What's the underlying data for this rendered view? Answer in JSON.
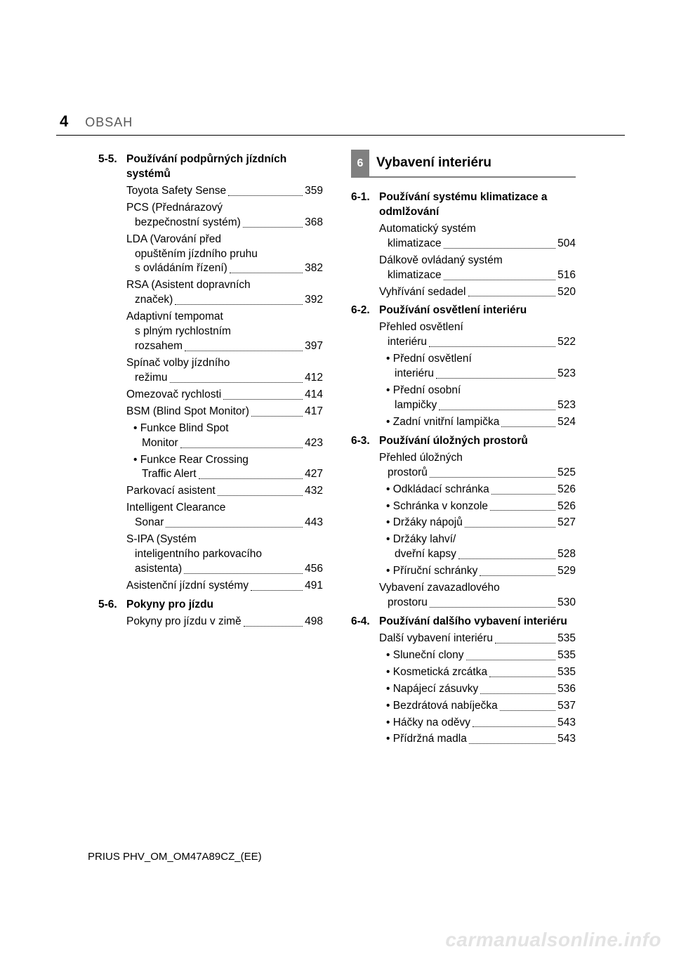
{
  "page_number": "4",
  "chapter_label": "OBSAH",
  "footer": "PRIUS PHV_OM_OM47A89CZ_(EE)",
  "watermark": "carmanualsonline.info",
  "left_column": {
    "sections": [
      {
        "num": "5-5.",
        "title": "Používání podpůrných jízdních systémů",
        "entries": [
          {
            "label": "Toyota Safety Sense",
            "page": "359"
          },
          {
            "label_lines": [
              "PCS (Přednárazový",
              "bezpečnostní systém)"
            ],
            "page": "368"
          },
          {
            "label_lines": [
              "LDA (Varování před",
              "opuštěním jízdního pruhu",
              "s ovládáním řízení)"
            ],
            "page": "382"
          },
          {
            "label_lines": [
              "RSA (Asistent dopravních",
              "značek)"
            ],
            "page": "392"
          },
          {
            "label_lines": [
              "Adaptivní tempomat",
              "s plným rychlostním",
              "rozsahem"
            ],
            "page": "397"
          },
          {
            "label_lines": [
              "Spínač volby jízdního",
              "režimu"
            ],
            "page": "412"
          },
          {
            "label": "Omezovač rychlosti",
            "page": "414"
          },
          {
            "label": "BSM (Blind Spot Monitor)",
            "page": "417"
          },
          {
            "sub": true,
            "label_lines": [
              "• Funkce Blind Spot",
              "Monitor"
            ],
            "page": "423"
          },
          {
            "sub": true,
            "label_lines": [
              "• Funkce Rear Crossing",
              "Traffic Alert"
            ],
            "page": "427"
          },
          {
            "label": "Parkovací asistent",
            "page": "432"
          },
          {
            "label_lines": [
              "Intelligent Clearance",
              "Sonar"
            ],
            "page": "443"
          },
          {
            "label_lines": [
              "S-IPA (Systém",
              "inteligentního parkovacího",
              "asistenta)"
            ],
            "page": "456"
          },
          {
            "label": "Asistenční jízdní systémy",
            "page": "491"
          }
        ]
      },
      {
        "num": "5-6.",
        "title": "Pokyny pro jízdu",
        "entries": [
          {
            "label": "Pokyny pro jízdu v zimě",
            "page": "498"
          }
        ]
      }
    ]
  },
  "right_column": {
    "banner": {
      "num": "6",
      "title": "Vybavení interiéru"
    },
    "sections": [
      {
        "num": "6-1.",
        "title": "Používání systému klimatizace a odmlžování",
        "entries": [
          {
            "label_lines": [
              "Automatický systém",
              "klimatizace"
            ],
            "page": "504"
          },
          {
            "label_lines": [
              "Dálkově ovládaný systém",
              "klimatizace"
            ],
            "page": "516"
          },
          {
            "label": "Vyhřívání sedadel",
            "page": "520"
          }
        ]
      },
      {
        "num": "6-2.",
        "title": "Používání osvětlení interiéru",
        "entries": [
          {
            "label_lines": [
              "Přehled osvětlení",
              "interiéru"
            ],
            "page": "522"
          },
          {
            "sub": true,
            "label_lines": [
              "• Přední osvětlení",
              "interiéru"
            ],
            "page": "523"
          },
          {
            "sub": true,
            "label_lines": [
              "• Přední osobní",
              "lampičky"
            ],
            "page": "523"
          },
          {
            "sub": true,
            "label": "• Zadní vnitřní lampička",
            "page": "524"
          }
        ]
      },
      {
        "num": "6-3.",
        "title": "Používání úložných prostorů",
        "entries": [
          {
            "label_lines": [
              "Přehled úložných",
              "prostorů"
            ],
            "page": "525"
          },
          {
            "sub": true,
            "label": "• Odkládací schránka",
            "page": "526"
          },
          {
            "sub": true,
            "label": "• Schránka v konzole",
            "page": "526"
          },
          {
            "sub": true,
            "label": "• Držáky nápojů",
            "page": "527"
          },
          {
            "sub": true,
            "label_lines": [
              "• Držáky lahví/",
              "dveřní kapsy"
            ],
            "page": "528"
          },
          {
            "sub": true,
            "label": "• Příruční schránky",
            "page": "529"
          },
          {
            "label_lines": [
              "Vybavení zavazadlového",
              "prostoru"
            ],
            "page": "530"
          }
        ]
      },
      {
        "num": "6-4.",
        "title": "Používání dalšího vybavení interiéru",
        "entries": [
          {
            "label": "Další vybavení interiéru",
            "page": "535"
          },
          {
            "sub": true,
            "label": "• Sluneční clony",
            "page": "535"
          },
          {
            "sub": true,
            "label": "• Kosmetická zrcátka",
            "page": "535"
          },
          {
            "sub": true,
            "label": "• Napájecí zásuvky",
            "page": "536"
          },
          {
            "sub": true,
            "label": "• Bezdrátová nabíječka",
            "page": "537"
          },
          {
            "sub": true,
            "label": "• Háčky na oděvy",
            "page": "543"
          },
          {
            "sub": true,
            "label": "• Přídržná madla",
            "page": "543"
          }
        ]
      }
    ]
  }
}
